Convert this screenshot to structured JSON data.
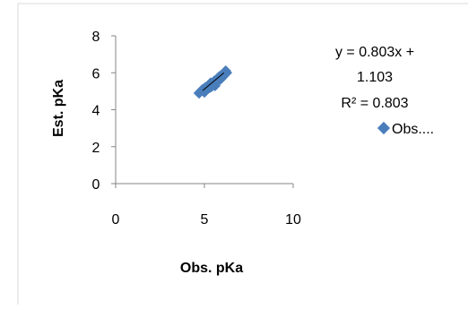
{
  "chart_data": {
    "type": "scatter",
    "xlabel": "Obs. pKa",
    "ylabel": "Est. pKa",
    "xlim": [
      0,
      10
    ],
    "ylim": [
      0,
      8
    ],
    "x_ticks": [
      "0",
      "5",
      "10"
    ],
    "y_ticks": [
      "0",
      "2",
      "4",
      "6",
      "8"
    ],
    "grid": false,
    "legend_position": "right",
    "series": [
      {
        "name": "Obs....",
        "color": "#4a7ebb",
        "marker": "diamond",
        "points": [
          {
            "x": 4.7,
            "y": 4.9
          },
          {
            "x": 4.8,
            "y": 5.0
          },
          {
            "x": 4.9,
            "y": 5.1
          },
          {
            "x": 5.0,
            "y": 4.95
          },
          {
            "x": 5.05,
            "y": 5.2
          },
          {
            "x": 5.1,
            "y": 5.05
          },
          {
            "x": 5.2,
            "y": 5.15
          },
          {
            "x": 5.25,
            "y": 5.3
          },
          {
            "x": 5.3,
            "y": 5.2
          },
          {
            "x": 5.35,
            "y": 5.45
          },
          {
            "x": 5.4,
            "y": 5.25
          },
          {
            "x": 5.45,
            "y": 5.4
          },
          {
            "x": 5.5,
            "y": 5.35
          },
          {
            "x": 5.55,
            "y": 5.55
          },
          {
            "x": 5.6,
            "y": 5.3
          },
          {
            "x": 5.65,
            "y": 5.6
          },
          {
            "x": 5.7,
            "y": 5.5
          },
          {
            "x": 5.75,
            "y": 5.7
          },
          {
            "x": 5.8,
            "y": 5.6
          },
          {
            "x": 5.85,
            "y": 5.8
          },
          {
            "x": 5.9,
            "y": 5.65
          },
          {
            "x": 5.95,
            "y": 5.85
          },
          {
            "x": 6.0,
            "y": 5.75
          },
          {
            "x": 6.05,
            "y": 5.95
          },
          {
            "x": 6.1,
            "y": 5.85
          },
          {
            "x": 6.15,
            "y": 6.05
          },
          {
            "x": 6.2,
            "y": 6.1
          },
          {
            "x": 6.25,
            "y": 6.0
          }
        ]
      }
    ],
    "trendline": {
      "slope": 0.803,
      "intercept": 1.103,
      "x_range": [
        4.9,
        6.1
      ],
      "color": "#000000"
    },
    "annotation": {
      "equation_line1": "y = 0.803x +",
      "equation_line2": "1.103",
      "r_squared": "R² = 0.803"
    }
  }
}
